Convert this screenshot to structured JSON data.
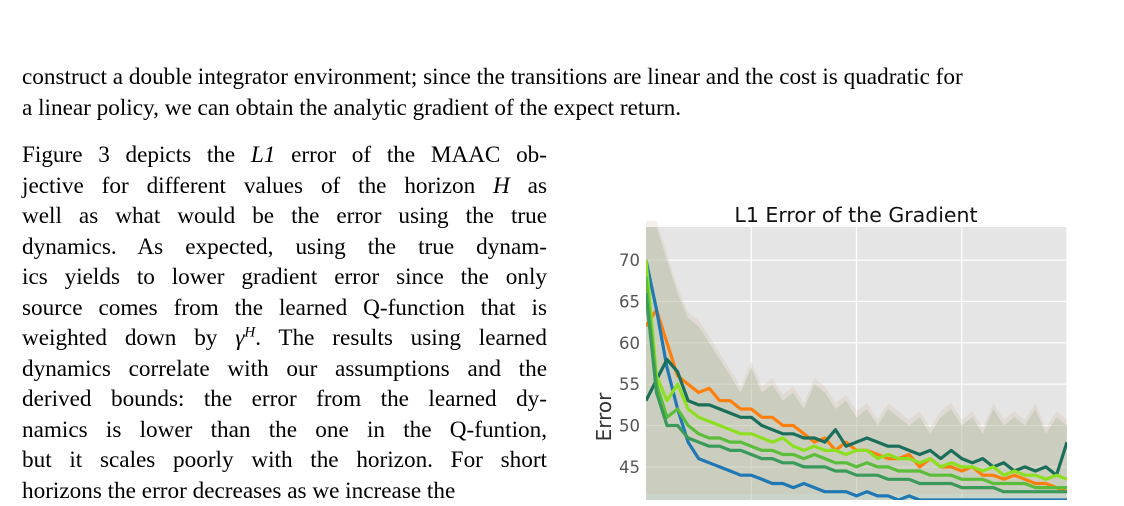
{
  "document": {
    "top_paragraph": [
      "construct a double integrator environment; since the transitions are linear and the cost is quadratic for",
      "a linear policy, we can obtain the analytic gradient of the expect return."
    ],
    "left_paragraph": [
      {
        "parts": [
          {
            "t": "Figure 3 depicts the "
          },
          {
            "t": "L1",
            "m": true
          },
          {
            "t": " error of the MAAC ob-"
          }
        ]
      },
      {
        "parts": [
          {
            "t": "jective for different values of the horizon "
          },
          {
            "t": "H",
            "m": true
          },
          {
            "t": " as"
          }
        ]
      },
      {
        "parts": [
          {
            "t": "well as what would be the error using the true"
          }
        ]
      },
      {
        "parts": [
          {
            "t": "dynamics. As expected, using the true dynam-"
          }
        ]
      },
      {
        "parts": [
          {
            "t": "ics yields to lower gradient error since the only"
          }
        ]
      },
      {
        "parts": [
          {
            "t": "source comes from the learned Q-function that is"
          }
        ]
      },
      {
        "parts": [
          {
            "t": "weighted down by "
          },
          {
            "t": "γ",
            "m": true
          },
          {
            "t": "H",
            "m": true,
            "sup": true
          },
          {
            "t": ". The results using learned"
          }
        ]
      },
      {
        "parts": [
          {
            "t": "dynamics correlate with our assumptions and the"
          }
        ]
      },
      {
        "parts": [
          {
            "t": "derived bounds: the error from the learned dy-"
          }
        ]
      },
      {
        "parts": [
          {
            "t": "namics is lower than the one in the Q-funtion,"
          }
        ]
      },
      {
        "parts": [
          {
            "t": "but it scales poorly with the horizon. For short"
          }
        ]
      },
      {
        "parts": [
          {
            "t": "horizons the error decreases as we increase the"
          }
        ]
      }
    ]
  },
  "chart_data": {
    "type": "line",
    "title": "L1 Error of the Gradient",
    "ylabel": "Error",
    "xlabel": "",
    "ylim": [
      41,
      74
    ],
    "yticks": [
      45,
      50,
      55,
      60,
      65,
      70
    ],
    "xlim": [
      0,
      40
    ],
    "grid": true,
    "background": "#e5e5e5",
    "x": [
      0,
      1,
      2,
      3,
      4,
      5,
      6,
      7,
      8,
      9,
      10,
      11,
      12,
      13,
      14,
      15,
      16,
      17,
      18,
      19,
      20,
      21,
      22,
      23,
      24,
      25,
      26,
      27,
      28,
      29,
      30,
      31,
      32,
      33,
      34,
      35,
      36,
      37,
      38,
      39,
      40
    ],
    "band": {
      "upper": [
        74,
        74,
        70,
        66,
        63,
        62,
        60,
        58,
        56,
        54,
        57,
        54,
        55,
        53,
        54,
        52,
        55,
        54,
        52,
        53,
        51,
        52,
        50,
        52,
        51,
        50,
        51,
        49,
        51,
        52,
        50,
        51,
        49,
        52,
        50,
        51,
        50,
        52,
        49,
        51,
        50
      ],
      "lower": [
        41,
        41,
        41,
        41,
        41,
        41,
        41,
        41,
        41,
        41,
        41,
        41,
        41,
        41,
        41,
        41,
        41,
        41,
        41,
        41,
        41,
        41,
        41,
        41,
        41,
        41,
        41,
        41,
        41,
        41,
        41,
        41,
        41,
        41,
        41,
        41,
        41,
        41,
        41,
        41,
        41
      ]
    },
    "series": [
      {
        "color": "#ff7f0e",
        "values": [
          62,
          64,
          60,
          56,
          55,
          54,
          54.5,
          53,
          53,
          52,
          52,
          51,
          51,
          50,
          50,
          49,
          48,
          48.5,
          47,
          48,
          47,
          47,
          46.5,
          46,
          46,
          46.5,
          45,
          46,
          45,
          45,
          44.5,
          45,
          44,
          44,
          43.5,
          44,
          43.5,
          43,
          43,
          42.5,
          42
        ]
      },
      {
        "color": "#1f77b4",
        "values": [
          70,
          64,
          57,
          52,
          48,
          46,
          45.5,
          45,
          44.5,
          44,
          44,
          43.5,
          43,
          43,
          42.5,
          43,
          42.5,
          42,
          42,
          42,
          41.5,
          42,
          41.5,
          41.5,
          41,
          41.5,
          41,
          41,
          41,
          41,
          41,
          41,
          41,
          41,
          41,
          41,
          41,
          41,
          41,
          41,
          41
        ]
      },
      {
        "color": "#1a6e5a",
        "values": [
          53,
          55.5,
          58,
          56.5,
          53,
          52.5,
          52.5,
          52,
          51.5,
          51,
          51,
          50,
          49.5,
          49,
          49,
          48.5,
          48.5,
          48,
          49.5,
          47.5,
          48,
          48.5,
          48,
          47.5,
          47.5,
          47,
          46.5,
          47,
          46,
          47,
          46,
          45.5,
          46,
          45,
          45.5,
          44.5,
          45,
          44.5,
          45,
          44,
          48
        ]
      },
      {
        "color": "#8ce021",
        "values": [
          70,
          56,
          53,
          55,
          52,
          51,
          50.5,
          50,
          49.5,
          49,
          49,
          48.5,
          48,
          48.5,
          47.5,
          47,
          47.5,
          47,
          47,
          46.5,
          47,
          47,
          46,
          46.5,
          46,
          46,
          45.5,
          46,
          45,
          45.5,
          45,
          45,
          44.5,
          45,
          44,
          44.5,
          44,
          44,
          43.5,
          44,
          43.5
        ]
      },
      {
        "color": "#5bbd3a",
        "values": [
          68,
          55,
          51,
          52,
          50,
          49,
          48.5,
          48.5,
          48,
          48,
          47.5,
          47,
          47,
          46.5,
          46.5,
          46,
          46.5,
          46,
          45.5,
          45.5,
          45,
          45.5,
          45,
          45,
          44.5,
          44.5,
          44.5,
          44,
          44,
          44,
          43.5,
          43.5,
          43.5,
          43,
          43,
          43,
          43,
          42.5,
          42.5,
          42.5,
          42.5
        ]
      },
      {
        "color": "#3a9a5a",
        "values": [
          66,
          54,
          50,
          50,
          48.5,
          48,
          47.5,
          47.5,
          47,
          47,
          46.5,
          46,
          46,
          45.5,
          45.5,
          45,
          45,
          45,
          44.5,
          44.5,
          44,
          44,
          44,
          43.5,
          43.5,
          43.5,
          43,
          43,
          43,
          43,
          42.5,
          42.5,
          42.5,
          42.5,
          42,
          42,
          42,
          42,
          42,
          42,
          42
        ]
      }
    ]
  }
}
